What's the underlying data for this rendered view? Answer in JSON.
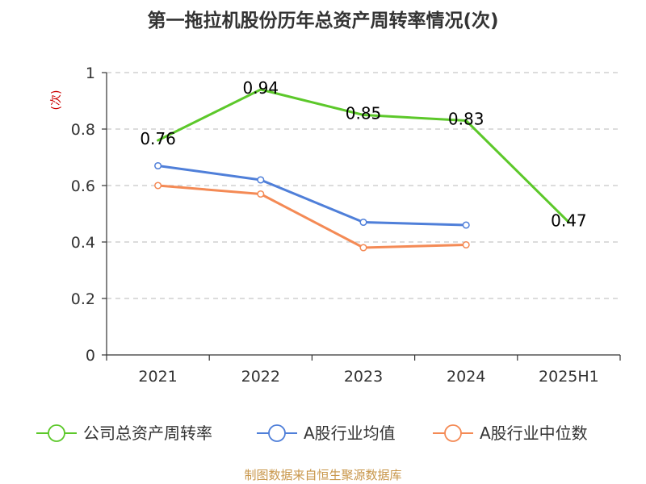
{
  "chart_data": {
    "type": "line",
    "title": "第一拖拉机股份历年总资产周转率情况(次)",
    "ylabel": "(次)",
    "xlabel": "",
    "categories": [
      "2021",
      "2022",
      "2023",
      "2024",
      "2025H1"
    ],
    "ylim": [
      0,
      1
    ],
    "yticks": [
      "0",
      "0.2",
      "0.4",
      "0.6",
      "0.8",
      "1"
    ],
    "grid": true,
    "legend_position": "bottom",
    "series": [
      {
        "name": "公司总资产周转率",
        "color": "#5cc82a",
        "values": [
          0.76,
          0.94,
          0.85,
          0.83,
          0.47
        ],
        "labels": [
          "0.76",
          "0.94",
          "0.85",
          "0.83",
          "0.47"
        ],
        "show_markers": false
      },
      {
        "name": "A股行业均值",
        "color": "#4f7fd9",
        "values": [
          0.67,
          0.62,
          0.47,
          0.46,
          null
        ],
        "show_markers": true
      },
      {
        "name": "A股行业中位数",
        "color": "#f48a55",
        "values": [
          0.6,
          0.57,
          0.38,
          0.39,
          null
        ],
        "show_markers": true
      }
    ],
    "source": "制图数据来自恒生聚源数据库"
  }
}
